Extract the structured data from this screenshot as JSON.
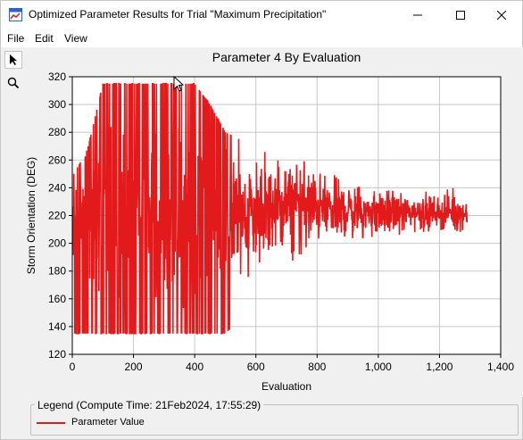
{
  "window": {
    "title": "Optimized Parameter Results for Trial \"Maximum Precipitation\""
  },
  "menu": {
    "file": "File",
    "edit": "Edit",
    "view": "View"
  },
  "toolbar": {
    "pointer": "pointer-icon",
    "zoom": "zoom-icon"
  },
  "legend": {
    "title": "Legend (Compute Time: 21Feb2024, 17:55:29)",
    "item_label": "Parameter Value",
    "item_color": "#e31a1c"
  },
  "chart_data": {
    "type": "line",
    "title": "Parameter 4 By Evaluation",
    "xlabel": "Evaluation",
    "ylabel": "Storm Orientation (DEG)",
    "xlim": [
      0,
      1400
    ],
    "ylim": [
      120,
      320
    ],
    "xticks": [
      "0",
      "200",
      "400",
      "600",
      "800",
      "1,000",
      "1,200",
      "1,400"
    ],
    "yticks": [
      "120",
      "140",
      "160",
      "180",
      "200",
      "220",
      "240",
      "260",
      "280",
      "300",
      "320"
    ],
    "grid": true,
    "color": "#e31a1c",
    "series": [
      {
        "name": "Parameter Value",
        "x_range": [
          1,
          1290
        ],
        "envelope": {
          "x": [
            0,
            50,
            100,
            150,
            200,
            250,
            300,
            350,
            400,
            450,
            500,
            550,
            600,
            650,
            700,
            750,
            800,
            850,
            900,
            950,
            1000,
            1050,
            1100,
            1150,
            1200,
            1250,
            1290
          ],
          "min": [
            135,
            135,
            135,
            135,
            135,
            135,
            135,
            135,
            135,
            135,
            135,
            145,
            155,
            160,
            175,
            185,
            190,
            195,
            198,
            200,
            205,
            205,
            208,
            208,
            210,
            205,
            212
          ],
          "max": [
            248,
            268,
            315,
            315,
            315,
            315,
            315,
            315,
            315,
            300,
            280,
            275,
            275,
            265,
            262,
            285,
            260,
            258,
            255,
            250,
            250,
            248,
            248,
            246,
            246,
            245,
            240
          ],
          "center": [
            210,
            215,
            220,
            222,
            222,
            222,
            222,
            222,
            222,
            222,
            222,
            222,
            222,
            224,
            226,
            226,
            226,
            224,
            224,
            222,
            222,
            222,
            222,
            222,
            222,
            222,
            220
          ]
        },
        "final_value": 215
      }
    ]
  }
}
